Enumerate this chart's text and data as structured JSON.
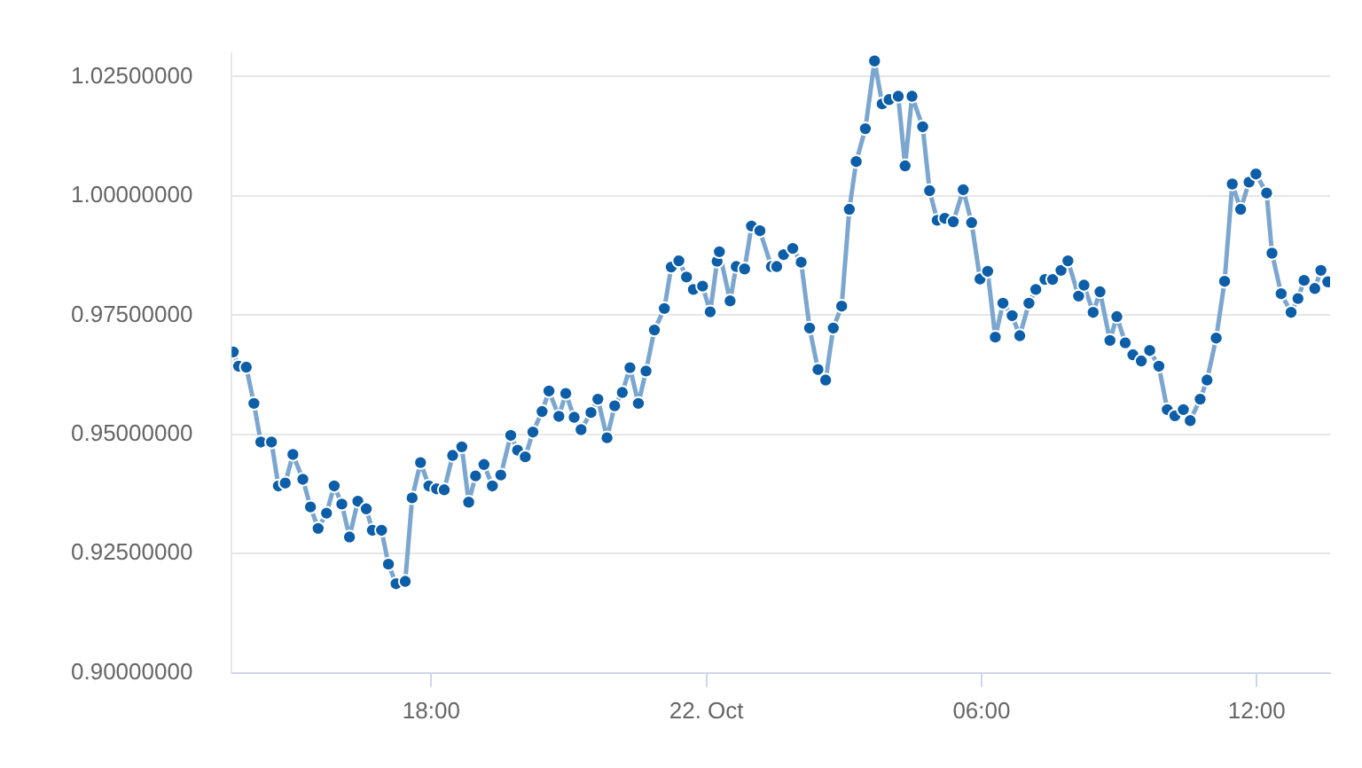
{
  "chart_data": {
    "type": "line",
    "x": [
      "--10-21T13:41",
      "--10-21T13:48",
      "--10-21T13:58",
      "--10-21T14:08",
      "--10-21T14:17",
      "--10-21T14:31",
      "--10-21T14:40",
      "--10-21T14:49",
      "--10-21T14:59",
      "--10-21T15:12",
      "--10-21T15:22",
      "--10-21T15:32",
      "--10-21T15:43",
      "--10-21T15:53",
      "--10-21T16:03",
      "--10-21T16:13",
      "--10-21T16:24",
      "--10-21T16:35",
      "--10-21T16:43",
      "--10-21T16:55",
      "--10-21T17:04",
      "--10-21T17:14",
      "--10-21T17:26",
      "--10-21T17:35",
      "--10-21T17:46",
      "--10-21T17:57",
      "--10-21T18:07",
      "--10-21T18:17",
      "--10-21T18:28",
      "--10-21T18:40",
      "--10-21T18:49",
      "--10-21T18:58",
      "--10-21T19:09",
      "--10-21T19:20",
      "--10-21T19:31",
      "--10-21T19:44",
      "--10-21T19:53",
      "--10-21T20:03",
      "--10-21T20:13",
      "--10-21T20:25",
      "--10-21T20:34",
      "--10-21T20:47",
      "--10-21T20:56",
      "--10-21T21:07",
      "--10-21T21:16",
      "--10-21T21:29",
      "--10-21T21:38",
      "--10-21T21:50",
      "--10-21T22:00",
      "--10-21T22:10",
      "--10-21T22:20",
      "--10-21T22:31",
      "--10-21T22:41",
      "--10-21T22:52",
      "--10-21T23:05",
      "--10-21T23:14",
      "--10-21T23:24",
      "--10-21T23:34",
      "--10-21T23:43",
      "--10-21T23:55",
      "--10-22T00:05",
      "--10-22T00:14",
      "--10-22T00:17",
      "--10-22T00:31",
      "--10-22T00:39",
      "--10-22T00:50",
      "--10-22T00:59",
      "--10-22T01:10",
      "--10-22T01:25",
      "--10-22T01:32",
      "--10-22T01:41",
      "--10-22T01:53",
      "--10-22T02:04",
      "--10-22T02:15",
      "--10-22T02:26",
      "--10-22T02:36",
      "--10-22T02:46",
      "--10-22T02:57",
      "--10-22T03:07",
      "--10-22T03:16",
      "--10-22T03:28",
      "--10-22T03:40",
      "--10-22T03:50",
      "--10-22T03:59",
      "--10-22T04:11",
      "--10-22T04:20",
      "--10-22T04:29",
      "--10-22T04:43",
      "--10-22T04:52",
      "--10-22T05:02",
      "--10-22T05:12",
      "--10-22T05:23",
      "--10-22T05:36",
      "--10-22T05:47",
      "--10-22T05:58",
      "--10-22T06:08",
      "--10-22T06:18",
      "--10-22T06:28",
      "--10-22T06:40",
      "--10-22T06:50",
      "--10-22T07:02",
      "--10-22T07:11",
      "--10-22T07:23",
      "--10-22T07:33",
      "--10-22T07:44",
      "--10-22T07:53",
      "--10-22T08:07",
      "--10-22T08:14",
      "--10-22T08:26",
      "--10-22T08:35",
      "--10-22T08:48",
      "--10-22T08:57",
      "--10-22T09:08",
      "--10-22T09:18",
      "--10-22T09:29",
      "--10-22T09:40",
      "--10-22T09:52",
      "--10-22T10:03",
      "--10-22T10:13",
      "--10-22T10:24",
      "--10-22T10:33",
      "--10-22T10:46",
      "--10-22T10:55",
      "--10-22T11:07",
      "--10-22T11:18",
      "--10-22T11:28",
      "--10-22T11:39",
      "--10-22T11:50",
      "--10-22T11:59",
      "--10-22T12:13",
      "--10-22T12:20",
      "--10-22T12:32",
      "--10-22T12:45",
      "--10-22T12:54",
      "--10-22T13:02",
      "--10-22T13:16",
      "--10-22T13:24",
      "--10-22T13:33"
    ],
    "series": [
      {
        "color": "#0d5ea8",
        "values": [
          0.9673,
          0.9643,
          0.9641,
          0.9565,
          0.9484,
          0.9484,
          0.9392,
          0.9398,
          0.9458,
          0.9406,
          0.9348,
          0.9303,
          0.9335,
          0.9392,
          0.9354,
          0.9285,
          0.936,
          0.9344,
          0.9299,
          0.9299,
          0.9228,
          0.9187,
          0.9192,
          0.9367,
          0.9441,
          0.9392,
          0.9386,
          0.9384,
          0.9456,
          0.9474,
          0.9358,
          0.9413,
          0.9437,
          0.9392,
          0.9415,
          0.9498,
          0.9467,
          0.9453,
          0.9505,
          0.9548,
          0.9591,
          0.9538,
          0.9586,
          0.9536,
          0.951,
          0.9546,
          0.9574,
          0.9493,
          0.956,
          0.9588,
          0.964,
          0.9565,
          0.9633,
          0.9719,
          0.9764,
          0.9851,
          0.9864,
          0.983,
          0.9804,
          0.9811,
          0.9757,
          0.9863,
          0.9883,
          0.978,
          0.9852,
          0.9847,
          0.9937,
          0.9927,
          0.9852,
          0.9852,
          0.9877,
          0.989,
          0.9861,
          0.9723,
          0.9636,
          0.9614,
          0.9723,
          0.9769,
          0.9972,
          1.0072,
          1.0141,
          1.0283,
          1.0193,
          1.0202,
          1.0209,
          1.0063,
          1.0209,
          1.0145,
          1.0011,
          0.9949,
          0.9953,
          0.9946,
          1.0013,
          0.9944,
          0.9826,
          0.9842,
          0.9704,
          0.9775,
          0.9749,
          0.9707,
          0.9775,
          0.9804,
          0.9825,
          0.9825,
          0.9844,
          0.9864,
          0.979,
          0.9813,
          0.9756,
          0.9799,
          0.9697,
          0.9747,
          0.9692,
          0.9667,
          0.9654,
          0.9676,
          0.9643,
          0.9552,
          0.9539,
          0.9552,
          0.9529,
          0.9574,
          0.9614,
          0.9702,
          0.9821,
          1.0025,
          0.9972,
          1.0029,
          1.0046,
          1.0006,
          0.988,
          0.9795,
          0.9756,
          0.9785,
          0.9823,
          0.9806,
          0.9844,
          0.982
        ]
      }
    ],
    "xlim": [
      "--10-21T13:39",
      "--10-22T13:36"
    ],
    "xticks": [
      {
        "value": "--10-21T18:00",
        "label": "18:00"
      },
      {
        "value": "--10-22T00:00",
        "label": "22. Oct"
      },
      {
        "value": "--10-22T06:00",
        "label": "06:00"
      },
      {
        "value": "--10-22T12:00",
        "label": "12:00"
      }
    ],
    "ylim": [
      0.9,
      1.03
    ],
    "yticks": [
      {
        "value": 0.9,
        "label": "0.90000000"
      },
      {
        "value": 0.925,
        "label": "0.92500000"
      },
      {
        "value": 0.95,
        "label": "0.95000000"
      },
      {
        "value": 0.975,
        "label": "0.97500000"
      },
      {
        "value": 1.0,
        "label": "1.00000000"
      },
      {
        "value": 1.025,
        "label": "1.02500000"
      }
    ],
    "grid": "y",
    "legend": false,
    "marker": "circle",
    "line_style": "solid"
  }
}
